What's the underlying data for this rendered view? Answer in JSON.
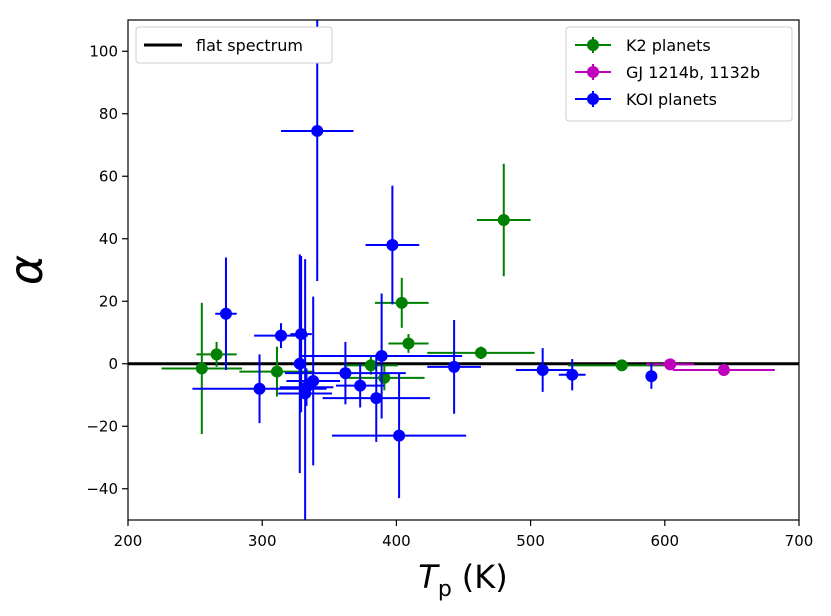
{
  "chart_data": {
    "type": "scatter",
    "title": "",
    "xlabel_main": "T",
    "xlabel_sub": "p",
    "xlabel_unit": "(K)",
    "ylabel": "α",
    "xlim": [
      200,
      700
    ],
    "ylim": [
      -50,
      110
    ],
    "xticks": [
      200,
      300,
      400,
      500,
      600,
      700
    ],
    "yticks": [
      -40,
      -20,
      0,
      20,
      40,
      60,
      80,
      100
    ],
    "grid": false,
    "reference_line": {
      "label": "flat spectrum",
      "y": 0,
      "color": "#000000"
    },
    "series": [
      {
        "name": "K2 planets",
        "color": "#008000",
        "points": [
          {
            "x": 255,
            "y": -1.5,
            "xerr": 30,
            "yerr": 21
          },
          {
            "x": 266,
            "y": 3,
            "xerr": 15,
            "yerr": 4
          },
          {
            "x": 311,
            "y": -2.5,
            "xerr": 28,
            "yerr": 8
          },
          {
            "x": 381,
            "y": -0.5,
            "xerr": 20,
            "yerr": 3
          },
          {
            "x": 391,
            "y": -4.5,
            "xerr": 30,
            "yerr": 4
          },
          {
            "x": 404,
            "y": 19.5,
            "xerr": 20,
            "yerr": 8
          },
          {
            "x": 409,
            "y": 6.5,
            "xerr": 15,
            "yerr": 3
          },
          {
            "x": 463,
            "y": 3.5,
            "xerr": 40,
            "yerr": 2
          },
          {
            "x": 480,
            "y": 46,
            "xerr": 20,
            "yerr": 18
          },
          {
            "x": 568,
            "y": -0.5,
            "xerr": 40,
            "yerr": 1
          }
        ]
      },
      {
        "name": "GJ 1214b, 1132b",
        "color": "#bf00bf",
        "points": [
          {
            "x": 604,
            "y": -0.2,
            "xerr": 18,
            "yerr": 1
          },
          {
            "x": 644,
            "y": -2,
            "xerr": 38,
            "yerr": 1.5
          }
        ]
      },
      {
        "name": "KOI planets",
        "color": "#0000ff",
        "points": [
          {
            "x": 273,
            "y": 16,
            "xerr": 8,
            "yerr": 18
          },
          {
            "x": 298,
            "y": -8,
            "xerr": 50,
            "yerr": 11
          },
          {
            "x": 314,
            "y": 9,
            "xerr": 20,
            "yerr": 4
          },
          {
            "x": 328,
            "y": 0,
            "xerr": 5,
            "yerr": 35
          },
          {
            "x": 329,
            "y": 9.5,
            "xerr": 8,
            "yerr": 25
          },
          {
            "x": 332,
            "y": -9.5,
            "xerr": 20,
            "yerr": 43
          },
          {
            "x": 333,
            "y": -7.5,
            "xerr": 20,
            "yerr": 6
          },
          {
            "x": 338,
            "y": -5.5,
            "xerr": 20,
            "yerr": 27
          },
          {
            "x": 341,
            "y": 74.5,
            "xerr": 27,
            "yerr": 48
          },
          {
            "x": 362,
            "y": -3,
            "xerr": 45,
            "yerr": 10
          },
          {
            "x": 373,
            "y": -7,
            "xerr": 18,
            "yerr": 7
          },
          {
            "x": 385,
            "y": -11,
            "xerr": 40,
            "yerr": 14
          },
          {
            "x": 389,
            "y": 2.5,
            "xerr": 60,
            "yerr": 20
          },
          {
            "x": 397,
            "y": 38,
            "xerr": 20,
            "yerr": 19
          },
          {
            "x": 402,
            "y": -23,
            "xerr": 50,
            "yerr": 20
          },
          {
            "x": 443,
            "y": -1,
            "xerr": 20,
            "yerr": 15
          },
          {
            "x": 509,
            "y": -2,
            "xerr": 20,
            "yerr": 7
          },
          {
            "x": 531,
            "y": -3.5,
            "xerr": 10,
            "yerr": 5
          },
          {
            "x": 590,
            "y": -4,
            "xerr": 3,
            "yerr": 4
          }
        ]
      }
    ]
  }
}
